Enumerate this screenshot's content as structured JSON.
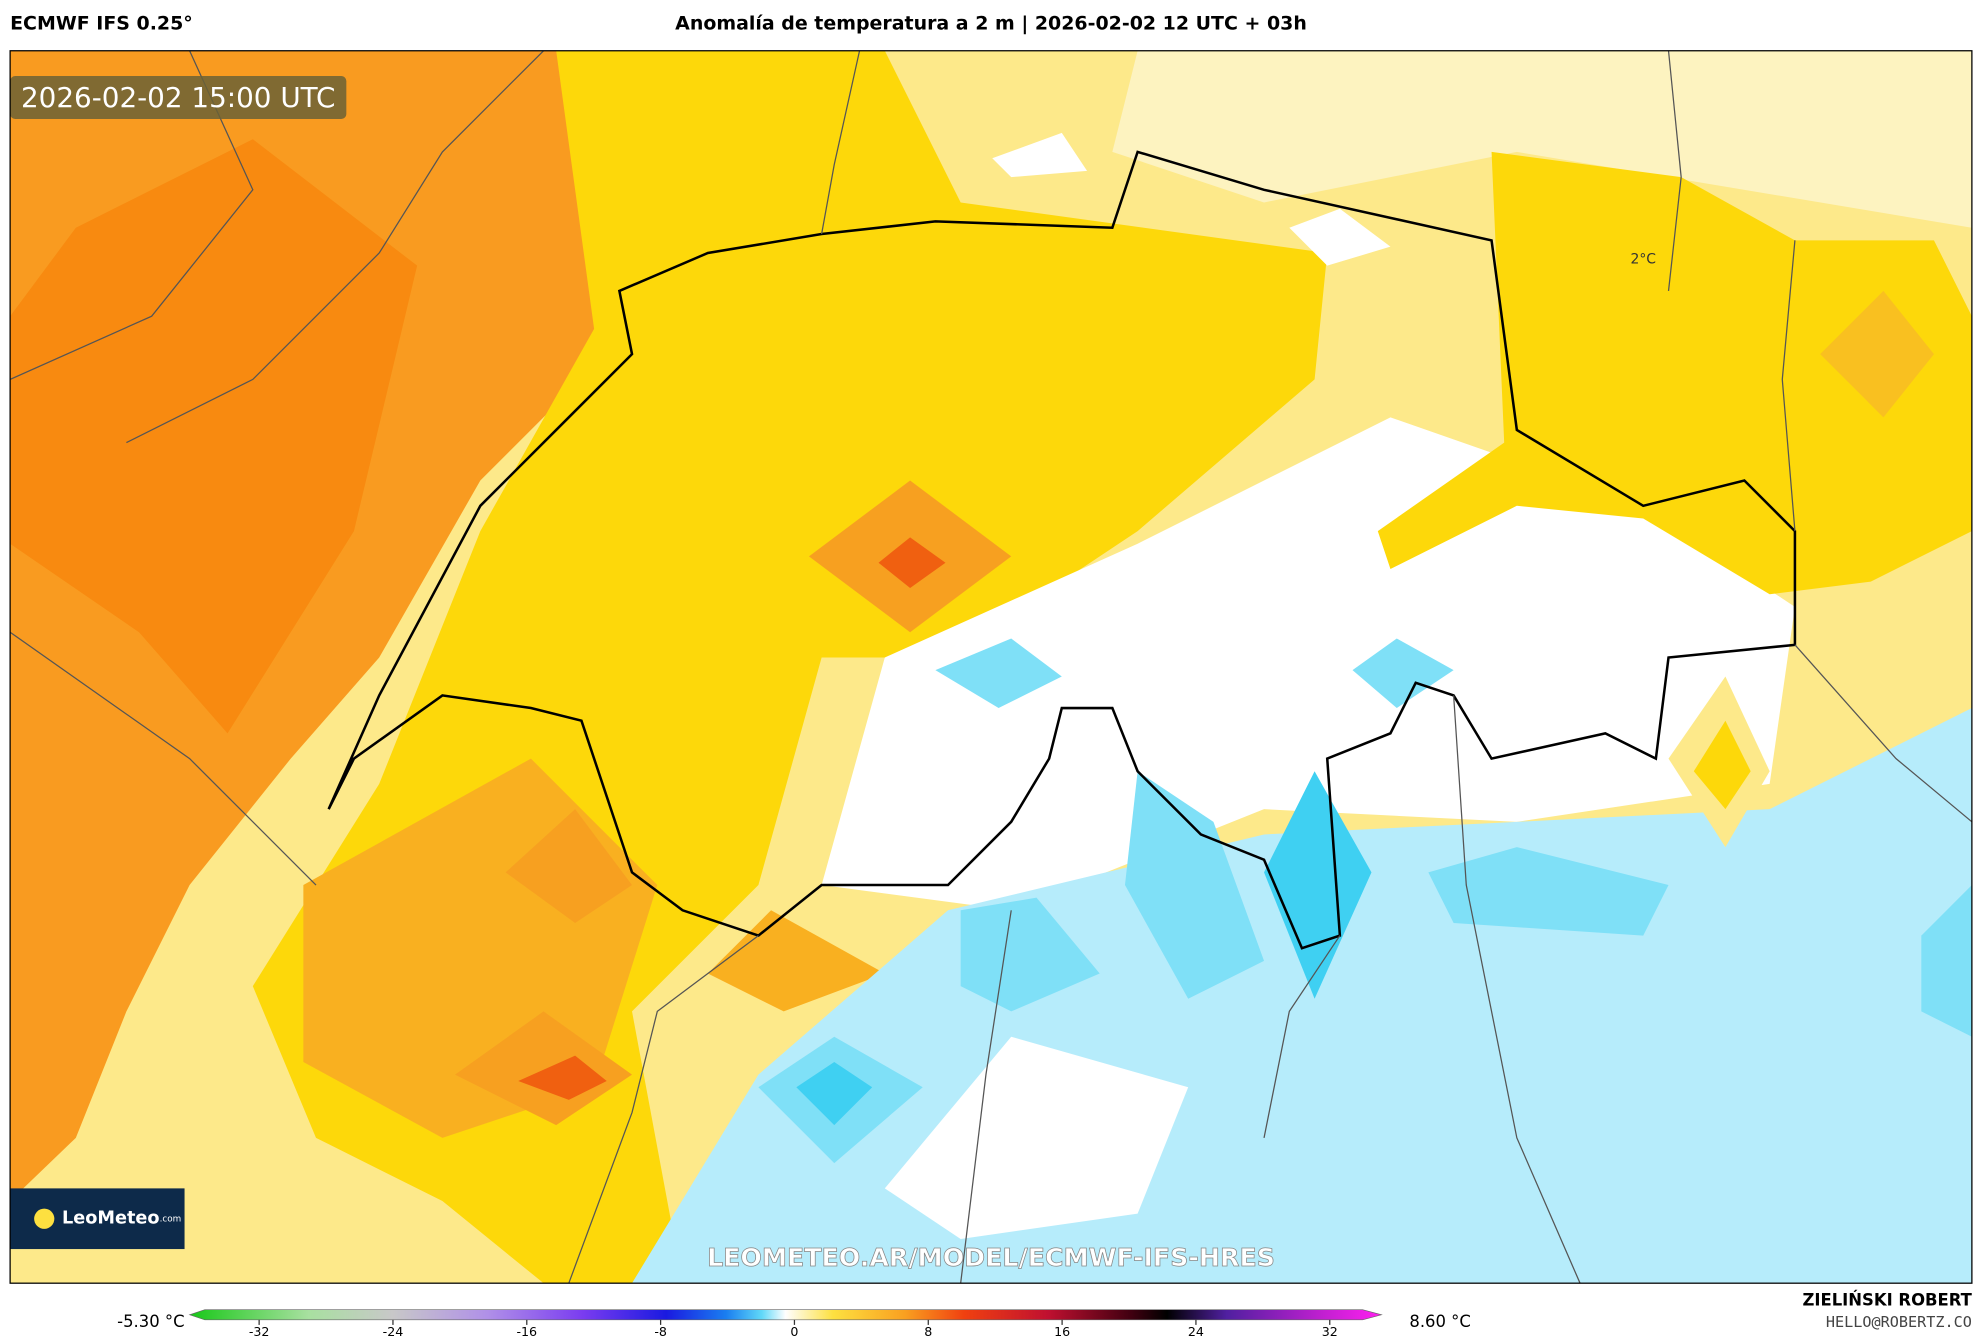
{
  "header": {
    "model": "ECMWF IFS 0.25°",
    "title": "Anomalía de temperatura a 2 m | 2026-02-02 12 UTC + 03h"
  },
  "map": {
    "timestamp": "2026-02-02 15:00 UTC",
    "watermark": "LEOMETEO.AR/MODEL/ECMWF-IFS-HRES",
    "logo": {
      "name": "LeoMeteo",
      "suffix": ".com"
    },
    "contour_label": "2°C"
  },
  "colorbar": {
    "min_label": "-5.30 °C",
    "max_label": "8.60 °C",
    "ticks": [
      -32,
      -24,
      -16,
      -8,
      0,
      8,
      16,
      24,
      32
    ]
  },
  "credits": {
    "author": "ZIELIŃSKI ROBERT",
    "email": "HELLO@ROBERTZ.CO"
  }
}
